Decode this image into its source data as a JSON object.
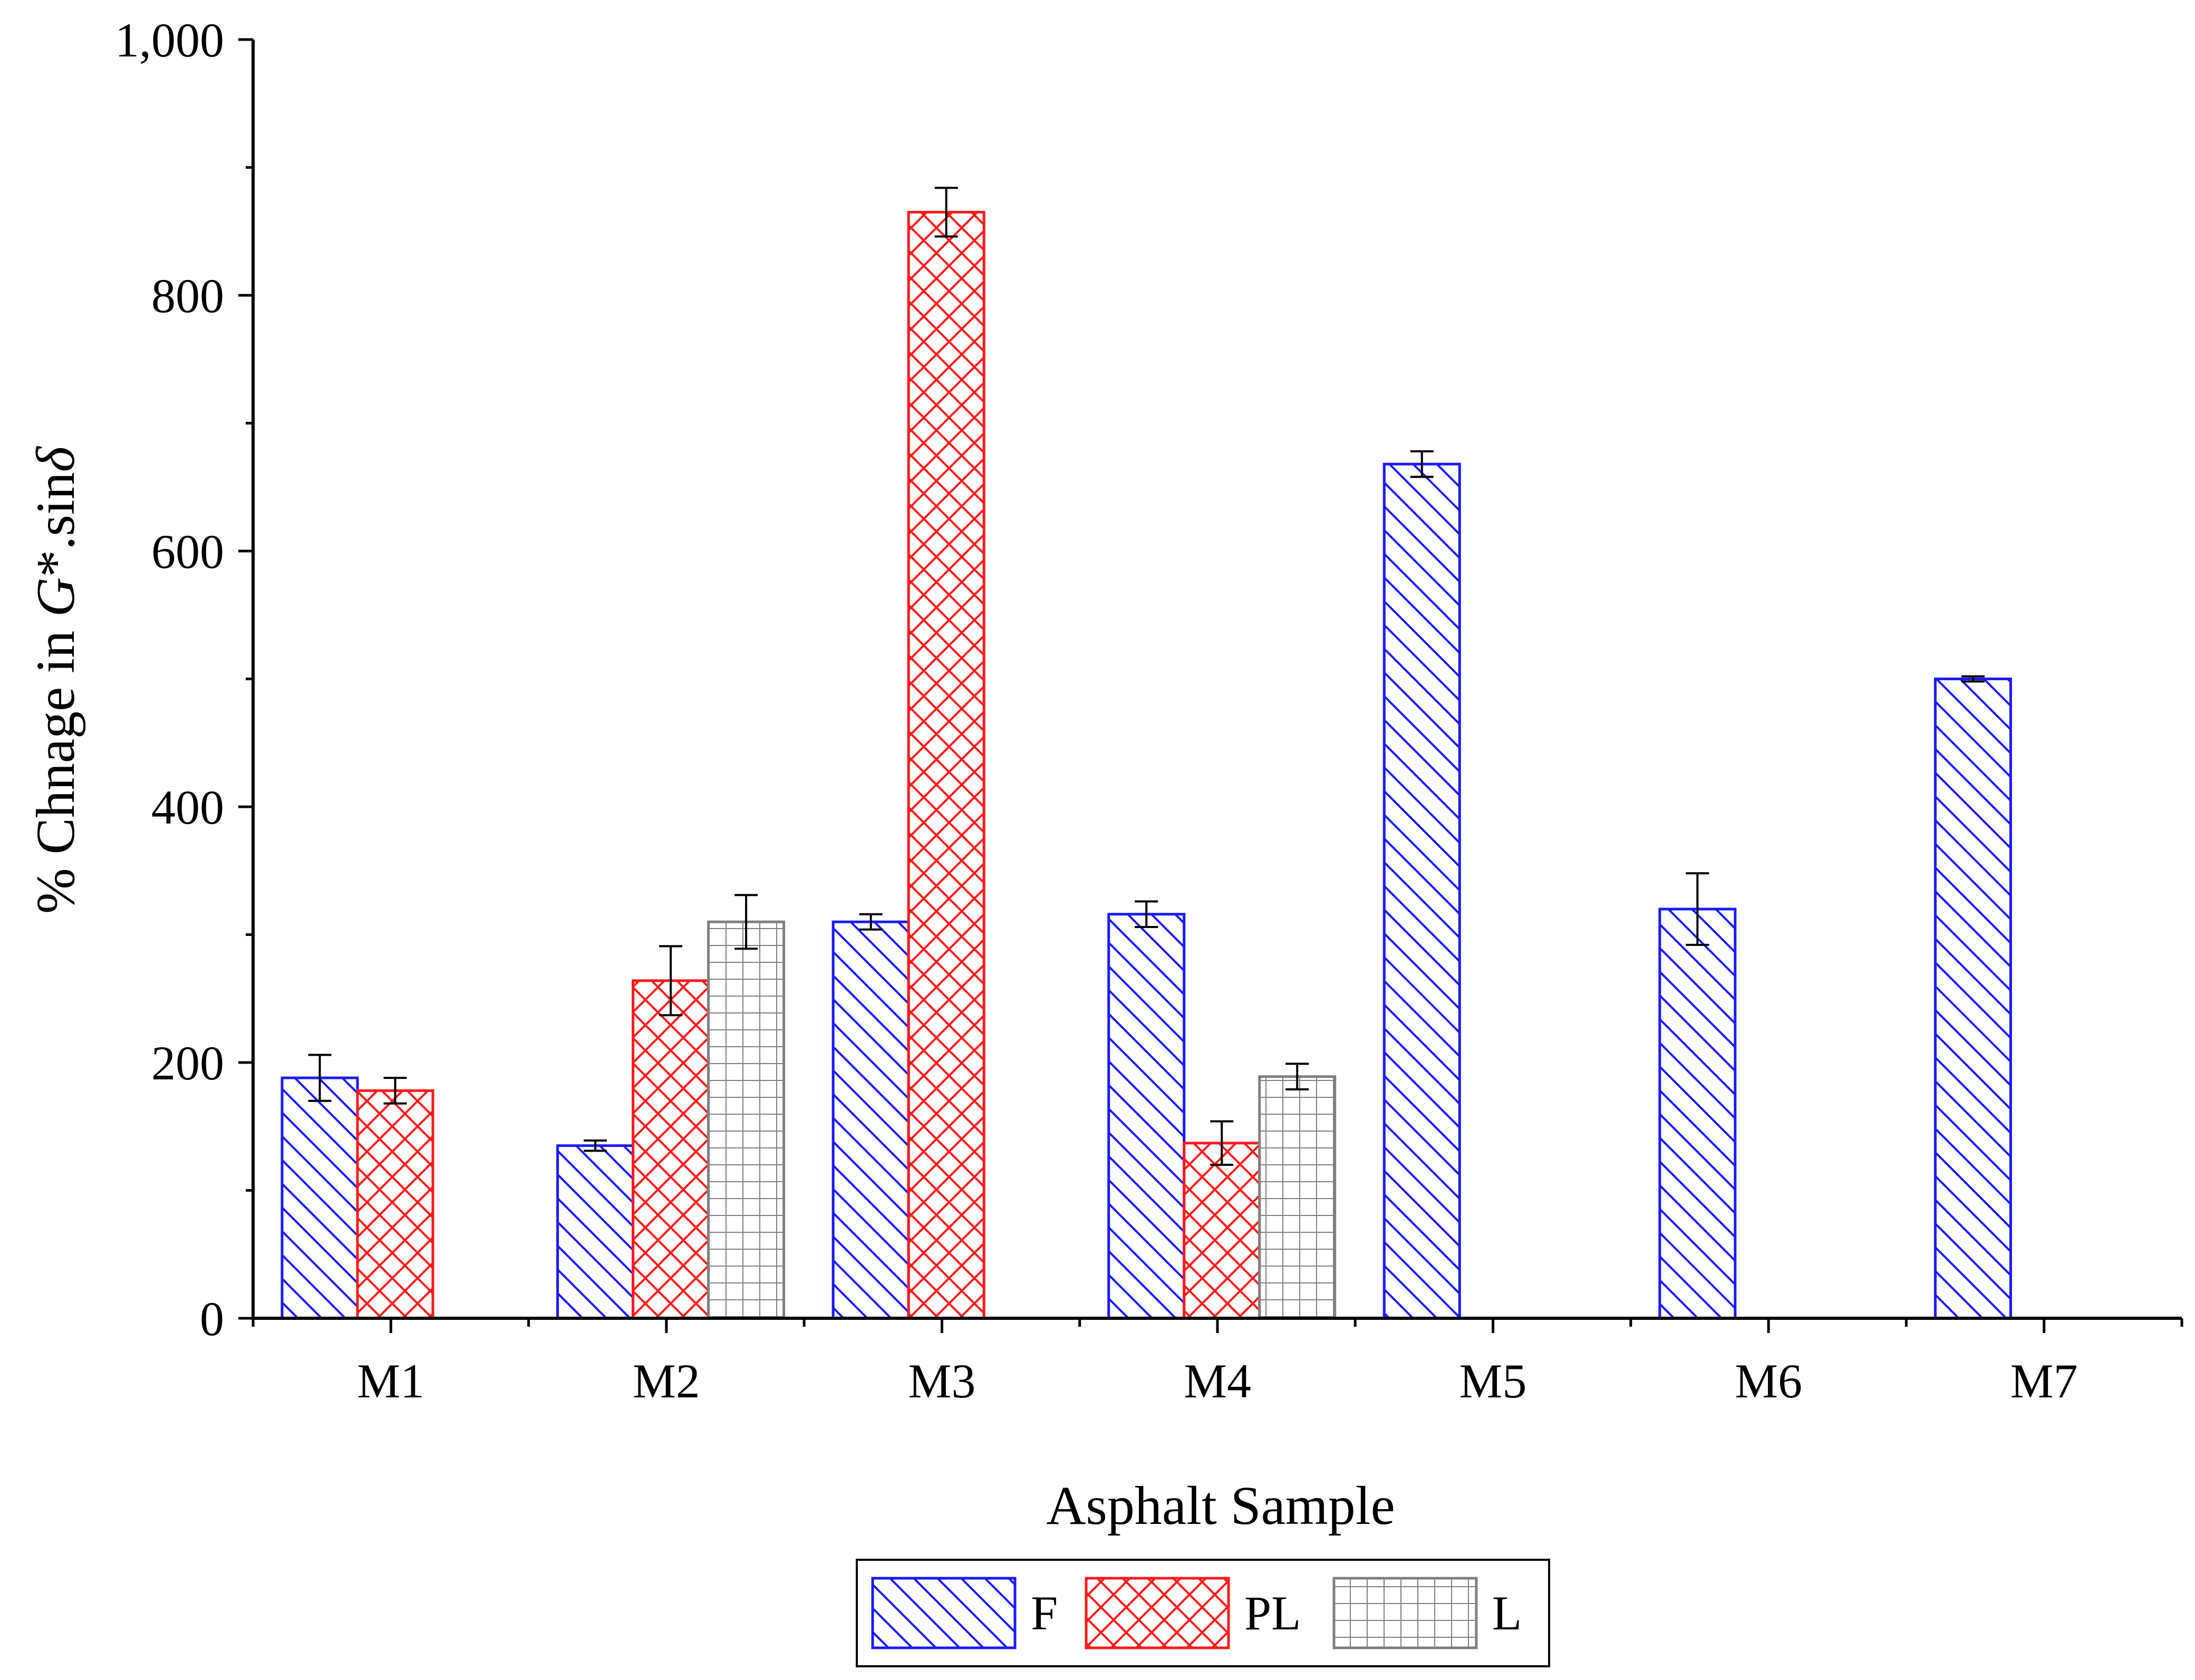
{
  "chart_data": {
    "type": "bar",
    "xlabel": "Asphalt Sample",
    "ylabel": {
      "prefix": "% Chnage in ",
      "g_symbol": "G",
      "mid": "*.sin",
      "delta": "δ"
    },
    "ylim": [
      0,
      1000
    ],
    "yticks": [
      {
        "value": 0,
        "label": "0"
      },
      {
        "value": 200,
        "label": "200"
      },
      {
        "value": 400,
        "label": "400"
      },
      {
        "value": 600,
        "label": "600"
      },
      {
        "value": 800,
        "label": "800"
      },
      {
        "value": 1000,
        "label": "1,000"
      }
    ],
    "categories": [
      "M1",
      "M2",
      "M3",
      "M4",
      "M5",
      "M6",
      "M7"
    ],
    "series": [
      {
        "name": "F",
        "color": "#1a1aff",
        "pattern": "diagonal",
        "values": [
          188,
          135,
          310,
          316,
          668,
          320,
          500
        ],
        "errors": [
          18,
          4,
          6,
          10,
          10,
          28,
          2
        ]
      },
      {
        "name": "PL",
        "color": "#ff1a1a",
        "pattern": "crosshatch",
        "values": [
          178,
          264,
          865,
          137,
          null,
          null,
          null
        ],
        "errors": [
          10,
          27,
          19,
          17,
          null,
          null,
          null
        ]
      },
      {
        "name": "L",
        "color": "#808080",
        "pattern": "grid",
        "values": [
          null,
          310,
          null,
          189,
          null,
          null,
          null
        ],
        "errors": [
          null,
          21,
          null,
          10,
          null,
          null,
          null
        ]
      }
    ],
    "legend": {
      "position": "bottom-center"
    },
    "grid": false
  }
}
